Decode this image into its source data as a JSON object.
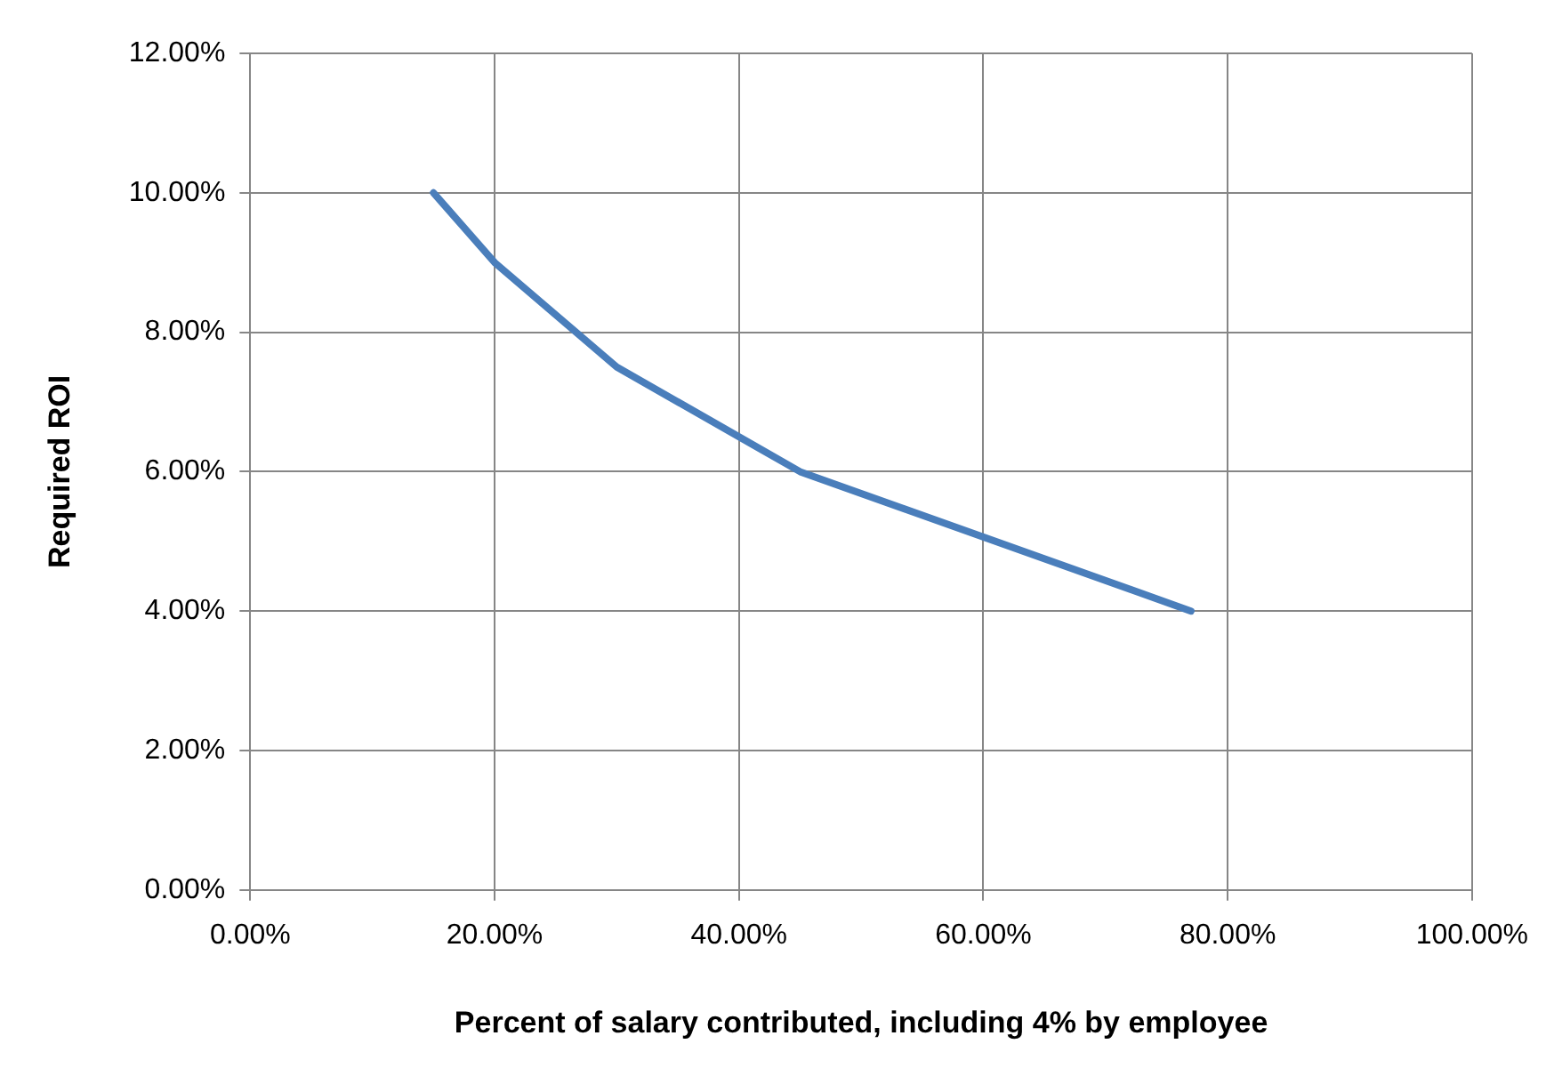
{
  "chart_data": {
    "type": "line",
    "xlabel": "Percent of salary contributed, including 4% by employee",
    "ylabel": "Required ROI",
    "x": [
      15,
      20,
      30,
      45,
      77
    ],
    "series": [
      {
        "color": "#4a7ebb",
        "values": [
          10,
          9,
          7.5,
          6,
          4
        ]
      }
    ],
    "xlim": [
      0,
      100
    ],
    "ylim": [
      0,
      12
    ],
    "xticks": [
      {
        "value": 0,
        "label": "0.00%"
      },
      {
        "value": 20,
        "label": "20.00%"
      },
      {
        "value": 40,
        "label": "40.00%"
      },
      {
        "value": 60,
        "label": "60.00%"
      },
      {
        "value": 80,
        "label": "80.00%"
      },
      {
        "value": 100,
        "label": "100.00%"
      }
    ],
    "yticks": [
      {
        "value": 0,
        "label": "0.00%"
      },
      {
        "value": 2,
        "label": "2.00%"
      },
      {
        "value": 4,
        "label": "4.00%"
      },
      {
        "value": 6,
        "label": "6.00%"
      },
      {
        "value": 8,
        "label": "8.00%"
      },
      {
        "value": 10,
        "label": "10.00%"
      },
      {
        "value": 12,
        "label": "12.00%"
      }
    ],
    "grid": true,
    "legend": false,
    "marker": "none",
    "line_style": "solid"
  }
}
